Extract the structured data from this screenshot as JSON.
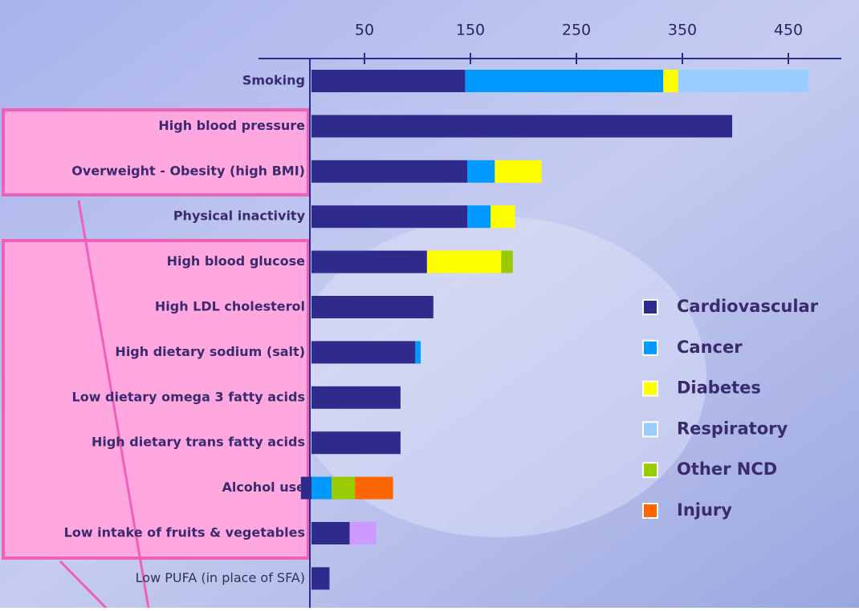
{
  "chart_data": {
    "type": "stacked-barh",
    "categories": [
      "Smoking",
      "High blood pressure",
      "Overweight - Obesity (high BMI)",
      "Physical inactivity",
      "High blood glucose",
      "High LDL cholesterol",
      "High dietary sodium (salt)",
      "Low dietary omega 3 fatty acids",
      "High dietary trans fatty acids",
      "Alcohol use",
      "Low intake of fruits & vegetables",
      "Low PUFA (in place of SFA)"
    ],
    "series": [
      {
        "name": "Cardiovascular",
        "color": "#2e2b8c",
        "values": [
          145,
          397,
          147,
          147,
          109,
          115,
          98,
          84,
          84,
          -10,
          36,
          17
        ]
      },
      {
        "name": "Cancer",
        "color": "#0099ff",
        "values": [
          187,
          null,
          26,
          22,
          null,
          null,
          5,
          null,
          null,
          19,
          25,
          null
        ],
        "point_colors": [
          null,
          null,
          null,
          null,
          null,
          null,
          null,
          null,
          null,
          null,
          "#cc99ff",
          null
        ]
      },
      {
        "name": "Diabetes",
        "color": "#ffff00",
        "values": [
          14,
          null,
          44,
          23,
          70,
          null,
          null,
          null,
          null,
          null,
          null,
          null
        ]
      },
      {
        "name": "Respiratory",
        "color": "#99ccff",
        "values": [
          123,
          null,
          null,
          null,
          null,
          null,
          null,
          null,
          null,
          null,
          null,
          null
        ]
      },
      {
        "name": "Other NCD",
        "color": "#99cc00",
        "values": [
          null,
          null,
          null,
          null,
          11,
          null,
          null,
          null,
          null,
          22,
          null,
          null
        ]
      },
      {
        "name": "Injury",
        "color": "#ff6600",
        "values": [
          null,
          null,
          null,
          null,
          null,
          null,
          null,
          null,
          null,
          36,
          null,
          null
        ]
      }
    ],
    "xlim": [
      -50,
      500
    ],
    "xticks": [
      50,
      150,
      250,
      350,
      450
    ],
    "legend": "right"
  }
}
